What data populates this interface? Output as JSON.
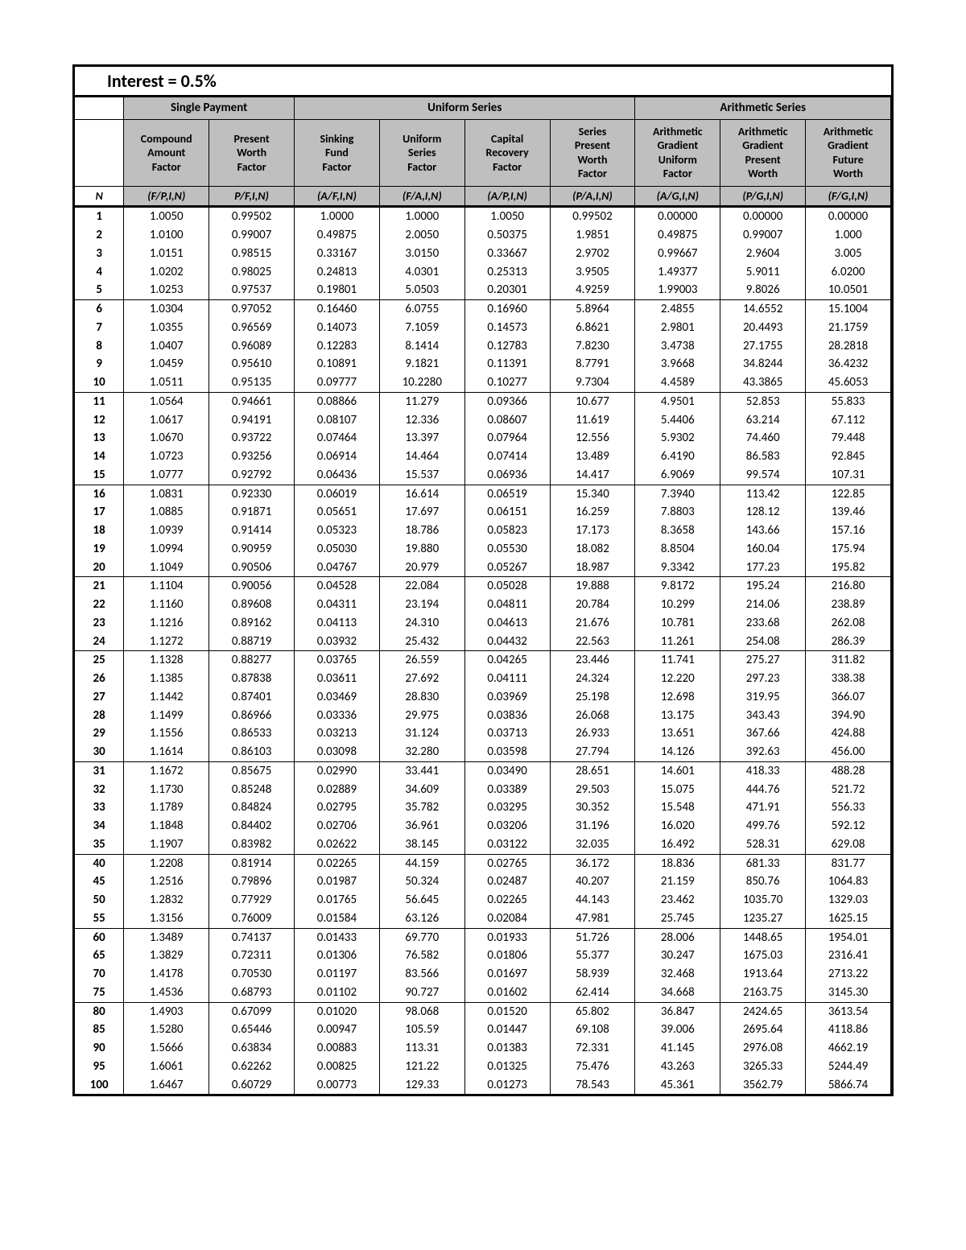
{
  "title": "Interest = 0.5%",
  "groups": [
    {
      "label": "Single Payment",
      "span": 2
    },
    {
      "label": "Uniform Series",
      "span": 4
    },
    {
      "label": "Arithmetic Series",
      "span": 3
    }
  ],
  "sub_headers": [
    "Compound Amount Factor",
    "Present Worth Factor",
    "Sinking Fund Factor",
    "Uniform Series Factor",
    "Capital Recovery Factor",
    "Series Present Worth Factor",
    "Arithmetic Gradient Uniform Factor",
    "Arithmetic Gradient Present Worth",
    "Arithmetic Gradient Future Worth"
  ],
  "n_label": "N",
  "formulas": [
    "(F/P,I,N)",
    "P/F,I,N)",
    "(A/F,I,N)",
    "(F/A,I,N)",
    "(A/P,I,N)",
    "(P/A,I,N)",
    "(A/G,I,N)",
    "(P/G,I,N)",
    "(F/G,I,N)"
  ],
  "separators_after": [
    5,
    10,
    15,
    20,
    24,
    30,
    35,
    55,
    75
  ],
  "rows": [
    {
      "n": 1,
      "v": [
        "1.0050",
        "0.99502",
        "1.0000",
        "1.0000",
        "1.0050",
        "0.99502",
        "0.00000",
        "0.00000",
        "0.00000"
      ]
    },
    {
      "n": 2,
      "v": [
        "1.0100",
        "0.99007",
        "0.49875",
        "2.0050",
        "0.50375",
        "1.9851",
        "0.49875",
        "0.99007",
        "1.000"
      ]
    },
    {
      "n": 3,
      "v": [
        "1.0151",
        "0.98515",
        "0.33167",
        "3.0150",
        "0.33667",
        "2.9702",
        "0.99667",
        "2.9604",
        "3.005"
      ]
    },
    {
      "n": 4,
      "v": [
        "1.0202",
        "0.98025",
        "0.24813",
        "4.0301",
        "0.25313",
        "3.9505",
        "1.49377",
        "5.9011",
        "6.0200"
      ]
    },
    {
      "n": 5,
      "v": [
        "1.0253",
        "0.97537",
        "0.19801",
        "5.0503",
        "0.20301",
        "4.9259",
        "1.99003",
        "9.8026",
        "10.0501"
      ]
    },
    {
      "n": 6,
      "v": [
        "1.0304",
        "0.97052",
        "0.16460",
        "6.0755",
        "0.16960",
        "5.8964",
        "2.4855",
        "14.6552",
        "15.1004"
      ]
    },
    {
      "n": 7,
      "v": [
        "1.0355",
        "0.96569",
        "0.14073",
        "7.1059",
        "0.14573",
        "6.8621",
        "2.9801",
        "20.4493",
        "21.1759"
      ]
    },
    {
      "n": 8,
      "v": [
        "1.0407",
        "0.96089",
        "0.12283",
        "8.1414",
        "0.12783",
        "7.8230",
        "3.4738",
        "27.1755",
        "28.2818"
      ]
    },
    {
      "n": 9,
      "v": [
        "1.0459",
        "0.95610",
        "0.10891",
        "9.1821",
        "0.11391",
        "8.7791",
        "3.9668",
        "34.8244",
        "36.4232"
      ]
    },
    {
      "n": 10,
      "v": [
        "1.0511",
        "0.95135",
        "0.09777",
        "10.2280",
        "0.10277",
        "9.7304",
        "4.4589",
        "43.3865",
        "45.6053"
      ]
    },
    {
      "n": 11,
      "v": [
        "1.0564",
        "0.94661",
        "0.08866",
        "11.279",
        "0.09366",
        "10.677",
        "4.9501",
        "52.853",
        "55.833"
      ]
    },
    {
      "n": 12,
      "v": [
        "1.0617",
        "0.94191",
        "0.08107",
        "12.336",
        "0.08607",
        "11.619",
        "5.4406",
        "63.214",
        "67.112"
      ]
    },
    {
      "n": 13,
      "v": [
        "1.0670",
        "0.93722",
        "0.07464",
        "13.397",
        "0.07964",
        "12.556",
        "5.9302",
        "74.460",
        "79.448"
      ]
    },
    {
      "n": 14,
      "v": [
        "1.0723",
        "0.93256",
        "0.06914",
        "14.464",
        "0.07414",
        "13.489",
        "6.4190",
        "86.583",
        "92.845"
      ]
    },
    {
      "n": 15,
      "v": [
        "1.0777",
        "0.92792",
        "0.06436",
        "15.537",
        "0.06936",
        "14.417",
        "6.9069",
        "99.574",
        "107.31"
      ]
    },
    {
      "n": 16,
      "v": [
        "1.0831",
        "0.92330",
        "0.06019",
        "16.614",
        "0.06519",
        "15.340",
        "7.3940",
        "113.42",
        "122.85"
      ]
    },
    {
      "n": 17,
      "v": [
        "1.0885",
        "0.91871",
        "0.05651",
        "17.697",
        "0.06151",
        "16.259",
        "7.8803",
        "128.12",
        "139.46"
      ]
    },
    {
      "n": 18,
      "v": [
        "1.0939",
        "0.91414",
        "0.05323",
        "18.786",
        "0.05823",
        "17.173",
        "8.3658",
        "143.66",
        "157.16"
      ]
    },
    {
      "n": 19,
      "v": [
        "1.0994",
        "0.90959",
        "0.05030",
        "19.880",
        "0.05530",
        "18.082",
        "8.8504",
        "160.04",
        "175.94"
      ]
    },
    {
      "n": 20,
      "v": [
        "1.1049",
        "0.90506",
        "0.04767",
        "20.979",
        "0.05267",
        "18.987",
        "9.3342",
        "177.23",
        "195.82"
      ]
    },
    {
      "n": 21,
      "v": [
        "1.1104",
        "0.90056",
        "0.04528",
        "22.084",
        "0.05028",
        "19.888",
        "9.8172",
        "195.24",
        "216.80"
      ]
    },
    {
      "n": 22,
      "v": [
        "1.1160",
        "0.89608",
        "0.04311",
        "23.194",
        "0.04811",
        "20.784",
        "10.299",
        "214.06",
        "238.89"
      ]
    },
    {
      "n": 23,
      "v": [
        "1.1216",
        "0.89162",
        "0.04113",
        "24.310",
        "0.04613",
        "21.676",
        "10.781",
        "233.68",
        "262.08"
      ]
    },
    {
      "n": 24,
      "v": [
        "1.1272",
        "0.88719",
        "0.03932",
        "25.432",
        "0.04432",
        "22.563",
        "11.261",
        "254.08",
        "286.39"
      ]
    },
    {
      "n": 25,
      "v": [
        "1.1328",
        "0.88277",
        "0.03765",
        "26.559",
        "0.04265",
        "23.446",
        "11.741",
        "275.27",
        "311.82"
      ]
    },
    {
      "n": 26,
      "v": [
        "1.1385",
        "0.87838",
        "0.03611",
        "27.692",
        "0.04111",
        "24.324",
        "12.220",
        "297.23",
        "338.38"
      ]
    },
    {
      "n": 27,
      "v": [
        "1.1442",
        "0.87401",
        "0.03469",
        "28.830",
        "0.03969",
        "25.198",
        "12.698",
        "319.95",
        "366.07"
      ]
    },
    {
      "n": 28,
      "v": [
        "1.1499",
        "0.86966",
        "0.03336",
        "29.975",
        "0.03836",
        "26.068",
        "13.175",
        "343.43",
        "394.90"
      ]
    },
    {
      "n": 29,
      "v": [
        "1.1556",
        "0.86533",
        "0.03213",
        "31.124",
        "0.03713",
        "26.933",
        "13.651",
        "367.66",
        "424.88"
      ]
    },
    {
      "n": 30,
      "v": [
        "1.1614",
        "0.86103",
        "0.03098",
        "32.280",
        "0.03598",
        "27.794",
        "14.126",
        "392.63",
        "456.00"
      ]
    },
    {
      "n": 31,
      "v": [
        "1.1672",
        "0.85675",
        "0.02990",
        "33.441",
        "0.03490",
        "28.651",
        "14.601",
        "418.33",
        "488.28"
      ]
    },
    {
      "n": 32,
      "v": [
        "1.1730",
        "0.85248",
        "0.02889",
        "34.609",
        "0.03389",
        "29.503",
        "15.075",
        "444.76",
        "521.72"
      ]
    },
    {
      "n": 33,
      "v": [
        "1.1789",
        "0.84824",
        "0.02795",
        "35.782",
        "0.03295",
        "30.352",
        "15.548",
        "471.91",
        "556.33"
      ]
    },
    {
      "n": 34,
      "v": [
        "1.1848",
        "0.84402",
        "0.02706",
        "36.961",
        "0.03206",
        "31.196",
        "16.020",
        "499.76",
        "592.12"
      ]
    },
    {
      "n": 35,
      "v": [
        "1.1907",
        "0.83982",
        "0.02622",
        "38.145",
        "0.03122",
        "32.035",
        "16.492",
        "528.31",
        "629.08"
      ]
    },
    {
      "n": 40,
      "v": [
        "1.2208",
        "0.81914",
        "0.02265",
        "44.159",
        "0.02765",
        "36.172",
        "18.836",
        "681.33",
        "831.77"
      ]
    },
    {
      "n": 45,
      "v": [
        "1.2516",
        "0.79896",
        "0.01987",
        "50.324",
        "0.02487",
        "40.207",
        "21.159",
        "850.76",
        "1064.83"
      ]
    },
    {
      "n": 50,
      "v": [
        "1.2832",
        "0.77929",
        "0.01765",
        "56.645",
        "0.02265",
        "44.143",
        "23.462",
        "1035.70",
        "1329.03"
      ]
    },
    {
      "n": 55,
      "v": [
        "1.3156",
        "0.76009",
        "0.01584",
        "63.126",
        "0.02084",
        "47.981",
        "25.745",
        "1235.27",
        "1625.15"
      ]
    },
    {
      "n": 60,
      "v": [
        "1.3489",
        "0.74137",
        "0.01433",
        "69.770",
        "0.01933",
        "51.726",
        "28.006",
        "1448.65",
        "1954.01"
      ]
    },
    {
      "n": 65,
      "v": [
        "1.3829",
        "0.72311",
        "0.01306",
        "76.582",
        "0.01806",
        "55.377",
        "30.247",
        "1675.03",
        "2316.41"
      ]
    },
    {
      "n": 70,
      "v": [
        "1.4178",
        "0.70530",
        "0.01197",
        "83.566",
        "0.01697",
        "58.939",
        "32.468",
        "1913.64",
        "2713.22"
      ]
    },
    {
      "n": 75,
      "v": [
        "1.4536",
        "0.68793",
        "0.01102",
        "90.727",
        "0.01602",
        "62.414",
        "34.668",
        "2163.75",
        "3145.30"
      ]
    },
    {
      "n": 80,
      "v": [
        "1.4903",
        "0.67099",
        "0.01020",
        "98.068",
        "0.01520",
        "65.802",
        "36.847",
        "2424.65",
        "3613.54"
      ]
    },
    {
      "n": 85,
      "v": [
        "1.5280",
        "0.65446",
        "0.00947",
        "105.59",
        "0.01447",
        "69.108",
        "39.006",
        "2695.64",
        "4118.86"
      ]
    },
    {
      "n": 90,
      "v": [
        "1.5666",
        "0.63834",
        "0.00883",
        "113.31",
        "0.01383",
        "72.331",
        "41.145",
        "2976.08",
        "4662.19"
      ]
    },
    {
      "n": 95,
      "v": [
        "1.6061",
        "0.62262",
        "0.00825",
        "121.22",
        "0.01325",
        "75.476",
        "43.263",
        "3265.33",
        "5244.49"
      ]
    },
    {
      "n": 100,
      "v": [
        "1.6467",
        "0.60729",
        "0.00773",
        "129.33",
        "0.01273",
        "78.543",
        "45.361",
        "3562.79",
        "5866.74"
      ]
    }
  ]
}
